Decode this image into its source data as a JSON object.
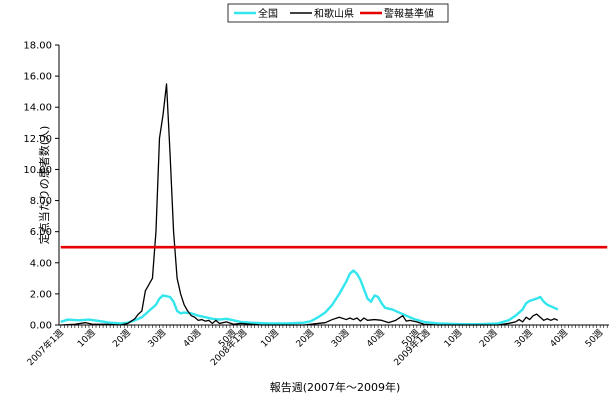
{
  "chart_data": {
    "type": "line",
    "xlabel": "報告週(2007年～2009年)",
    "ylabel": "定点当たりの患者数(人)",
    "ylim": [
      0,
      18
    ],
    "yticks": [
      "0.00",
      "2.00",
      "4.00",
      "6.00",
      "8.00",
      "10.00",
      "12.00",
      "14.00",
      "16.00",
      "18.00"
    ],
    "grid": false,
    "legend_position": "top",
    "xtick_labels": [
      {
        "week": 1,
        "label": "2007年1週"
      },
      {
        "week": 10,
        "label": "10週"
      },
      {
        "week": 20,
        "label": "20週"
      },
      {
        "week": 30,
        "label": "30週"
      },
      {
        "week": 40,
        "label": "40週"
      },
      {
        "week": 50,
        "label": "50週"
      },
      {
        "week": 53,
        "label": "2008年1週"
      },
      {
        "week": 62,
        "label": "10週"
      },
      {
        "week": 72,
        "label": "20週"
      },
      {
        "week": 82,
        "label": "30週"
      },
      {
        "week": 92,
        "label": "40週"
      },
      {
        "week": 102,
        "label": "50週"
      },
      {
        "week": 105,
        "label": "2009年1週"
      },
      {
        "week": 114,
        "label": "10週"
      },
      {
        "week": 124,
        "label": "20週"
      },
      {
        "week": 134,
        "label": "30週"
      },
      {
        "week": 144,
        "label": "40週"
      },
      {
        "week": 154,
        "label": "50週"
      }
    ],
    "x_range": [
      1,
      156
    ],
    "series": [
      {
        "name": "全国",
        "color": "#33e6ee",
        "points": [
          [
            1,
            0.2
          ],
          [
            3,
            0.35
          ],
          [
            6,
            0.3
          ],
          [
            9,
            0.35
          ],
          [
            12,
            0.25
          ],
          [
            15,
            0.15
          ],
          [
            18,
            0.1
          ],
          [
            20,
            0.15
          ],
          [
            22,
            0.3
          ],
          [
            24,
            0.5
          ],
          [
            26,
            0.9
          ],
          [
            28,
            1.3
          ],
          [
            29,
            1.7
          ],
          [
            30,
            1.9
          ],
          [
            32,
            1.8
          ],
          [
            33,
            1.5
          ],
          [
            34,
            0.9
          ],
          [
            35,
            0.75
          ],
          [
            36,
            0.8
          ],
          [
            38,
            0.75
          ],
          [
            40,
            0.6
          ],
          [
            42,
            0.5
          ],
          [
            44,
            0.4
          ],
          [
            46,
            0.35
          ],
          [
            48,
            0.4
          ],
          [
            50,
            0.3
          ],
          [
            52,
            0.2
          ],
          [
            55,
            0.15
          ],
          [
            60,
            0.1
          ],
          [
            65,
            0.1
          ],
          [
            70,
            0.15
          ],
          [
            72,
            0.25
          ],
          [
            74,
            0.5
          ],
          [
            76,
            0.8
          ],
          [
            78,
            1.3
          ],
          [
            80,
            2.0
          ],
          [
            82,
            2.8
          ],
          [
            83,
            3.3
          ],
          [
            84,
            3.5
          ],
          [
            85,
            3.3
          ],
          [
            86,
            2.9
          ],
          [
            87,
            2.3
          ],
          [
            88,
            1.7
          ],
          [
            89,
            1.5
          ],
          [
            90,
            1.9
          ],
          [
            91,
            1.8
          ],
          [
            92,
            1.4
          ],
          [
            93,
            1.1
          ],
          [
            95,
            1.0
          ],
          [
            97,
            0.8
          ],
          [
            99,
            0.6
          ],
          [
            101,
            0.4
          ],
          [
            104,
            0.2
          ],
          [
            108,
            0.1
          ],
          [
            115,
            0.05
          ],
          [
            120,
            0.05
          ],
          [
            125,
            0.1
          ],
          [
            128,
            0.3
          ],
          [
            130,
            0.6
          ],
          [
            132,
            1.0
          ],
          [
            133,
            1.4
          ],
          [
            134,
            1.55
          ],
          [
            136,
            1.7
          ],
          [
            137,
            1.8
          ],
          [
            138,
            1.5
          ],
          [
            139,
            1.3
          ],
          [
            140,
            1.2
          ],
          [
            141,
            1.1
          ],
          [
            142,
            1.0
          ]
        ]
      },
      {
        "name": "和歌山県",
        "color": "#000000",
        "points": [
          [
            1,
            0.0
          ],
          [
            5,
            0.05
          ],
          [
            8,
            0.15
          ],
          [
            10,
            0.05
          ],
          [
            14,
            0.05
          ],
          [
            18,
            0.0
          ],
          [
            20,
            0.1
          ],
          [
            22,
            0.4
          ],
          [
            23,
            0.7
          ],
          [
            24,
            0.9
          ],
          [
            25,
            2.2
          ],
          [
            26,
            2.6
          ],
          [
            27,
            3.0
          ],
          [
            28,
            6.0
          ],
          [
            29,
            12.0
          ],
          [
            30,
            13.5
          ],
          [
            31,
            15.5
          ],
          [
            32,
            11.0
          ],
          [
            33,
            6.0
          ],
          [
            34,
            3.0
          ],
          [
            35,
            2.0
          ],
          [
            36,
            1.3
          ],
          [
            37,
            0.9
          ],
          [
            38,
            0.6
          ],
          [
            39,
            0.5
          ],
          [
            40,
            0.3
          ],
          [
            41,
            0.35
          ],
          [
            42,
            0.25
          ],
          [
            43,
            0.3
          ],
          [
            44,
            0.1
          ],
          [
            45,
            0.3
          ],
          [
            46,
            0.1
          ],
          [
            48,
            0.2
          ],
          [
            50,
            0.05
          ],
          [
            52,
            0.1
          ],
          [
            55,
            0.05
          ],
          [
            58,
            0.0
          ],
          [
            62,
            0.0
          ],
          [
            66,
            0.0
          ],
          [
            70,
            0.0
          ],
          [
            74,
            0.1
          ],
          [
            76,
            0.15
          ],
          [
            78,
            0.35
          ],
          [
            80,
            0.5
          ],
          [
            82,
            0.35
          ],
          [
            83,
            0.45
          ],
          [
            84,
            0.35
          ],
          [
            85,
            0.45
          ],
          [
            86,
            0.25
          ],
          [
            87,
            0.45
          ],
          [
            88,
            0.3
          ],
          [
            90,
            0.35
          ],
          [
            92,
            0.3
          ],
          [
            94,
            0.15
          ],
          [
            96,
            0.3
          ],
          [
            98,
            0.6
          ],
          [
            99,
            0.25
          ],
          [
            100,
            0.3
          ],
          [
            102,
            0.2
          ],
          [
            104,
            0.05
          ],
          [
            108,
            0.0
          ],
          [
            115,
            0.0
          ],
          [
            120,
            0.0
          ],
          [
            125,
            0.0
          ],
          [
            128,
            0.1
          ],
          [
            130,
            0.2
          ],
          [
            131,
            0.35
          ],
          [
            132,
            0.2
          ],
          [
            133,
            0.5
          ],
          [
            134,
            0.35
          ],
          [
            135,
            0.6
          ],
          [
            136,
            0.7
          ],
          [
            137,
            0.5
          ],
          [
            138,
            0.3
          ],
          [
            139,
            0.4
          ],
          [
            140,
            0.3
          ],
          [
            141,
            0.4
          ],
          [
            142,
            0.3
          ]
        ]
      },
      {
        "name": "警報基準値",
        "color": "#e60000",
        "points": [
          [
            1,
            5.0
          ],
          [
            156,
            5.0
          ]
        ]
      }
    ]
  }
}
